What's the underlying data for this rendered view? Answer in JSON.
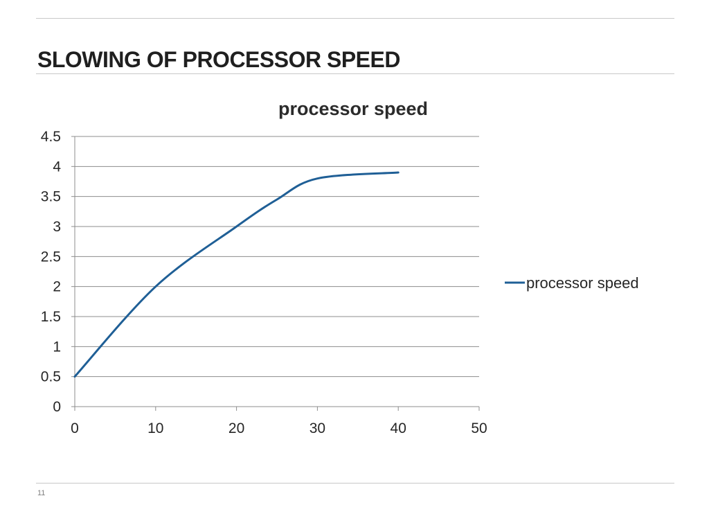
{
  "slide": {
    "title": "SLOWING OF PROCESSOR SPEED",
    "number": "11"
  },
  "colors": {
    "series": "#1f5f96",
    "gridline": "#8c8c8c",
    "rule": "#c8c8c8"
  },
  "chart_data": {
    "type": "line",
    "title": "processor speed",
    "xlabel": "",
    "ylabel": "",
    "xlim": [
      0,
      50
    ],
    "ylim": [
      0,
      4.5
    ],
    "x_ticks": [
      0,
      10,
      20,
      30,
      40,
      50
    ],
    "y_ticks": [
      0,
      0.5,
      1,
      1.5,
      2,
      2.5,
      3,
      3.5,
      4,
      4.5
    ],
    "x_tick_labels": [
      "0",
      "10",
      "20",
      "30",
      "40",
      "50"
    ],
    "y_tick_labels": [
      "0",
      "0.5",
      "1",
      "1.5",
      "2",
      "2.5",
      "3",
      "3.5",
      "4",
      "4.5"
    ],
    "grid": true,
    "legend_position": "right",
    "series": [
      {
        "name": "processor speed",
        "smooth": true,
        "x": [
          0,
          10,
          20,
          25,
          30,
          40
        ],
        "y": [
          0.5,
          2,
          3,
          3.45,
          3.8,
          3.9
        ]
      }
    ]
  }
}
